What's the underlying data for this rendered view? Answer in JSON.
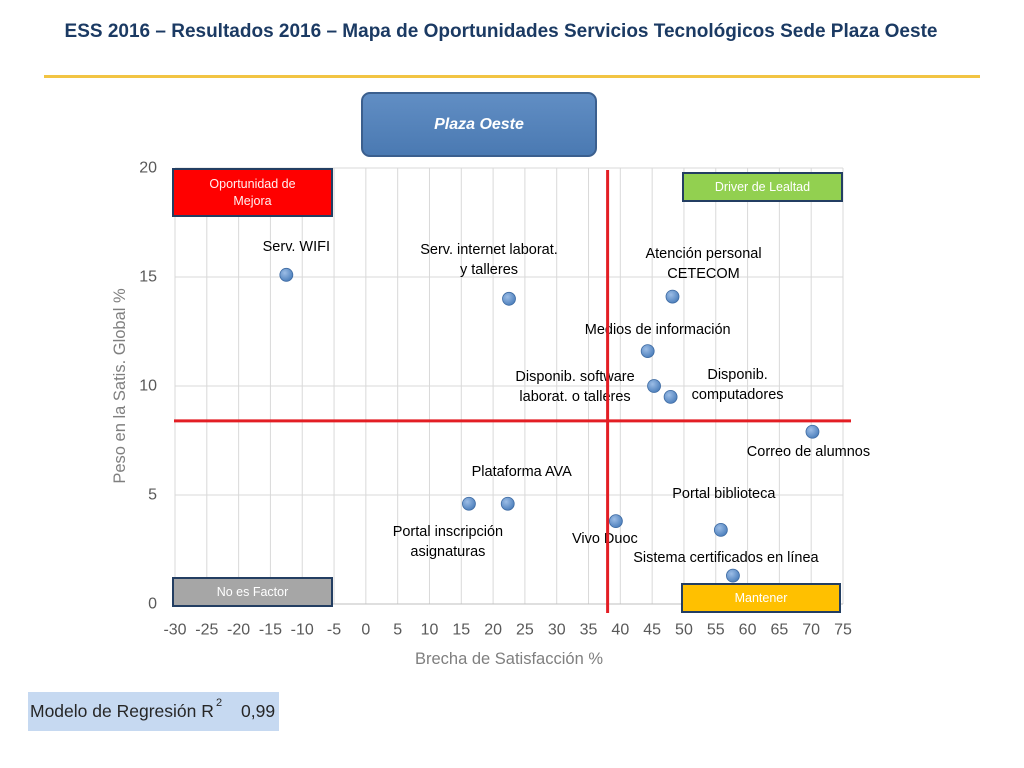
{
  "header": {
    "title": "ESS 2016 – Resultados 2016 – Mapa de Oportunidades Servicios Tecnológicos Sede Plaza Oeste",
    "title_color": "#1b3a63",
    "rule_color": "#f2c443"
  },
  "campus_box": {
    "label": "Plaza Oeste",
    "fill": "#4f81bd"
  },
  "quadrants": {
    "top_left": {
      "label": "Oportunidad de\nMejora",
      "fill": "#ff0000"
    },
    "top_right": {
      "label": "Driver de Lealtad",
      "fill": "#92d050"
    },
    "bottom_left": {
      "label": "No es Factor",
      "fill": "#a6a6a6"
    },
    "bottom_right": {
      "label": "Mantener",
      "fill": "#ffc000"
    }
  },
  "chart_data": {
    "type": "scatter",
    "xlabel": "Brecha de Satisfacción %",
    "ylabel": "Peso en la Satis. Global %",
    "xlim": [
      -30,
      75
    ],
    "ylim": [
      0,
      20
    ],
    "x_ticks": [
      -30,
      -25,
      -20,
      -15,
      -10,
      -5,
      0,
      5,
      10,
      15,
      20,
      25,
      30,
      35,
      40,
      45,
      50,
      55,
      60,
      65,
      70,
      75
    ],
    "y_ticks": [
      0,
      5,
      10,
      15,
      20
    ],
    "grid": true,
    "point_color": "#4f81bd",
    "reference_lines": {
      "x": 38,
      "y": 8.4,
      "color": "#e31e24"
    },
    "points": [
      {
        "label": "Serv. WIFI",
        "x": -12.5,
        "y": 15.1
      },
      {
        "label": "Serv. internet laborat.\ny talleres",
        "x": 22.5,
        "y": 14.0
      },
      {
        "label": "Atención personal\nCETECOM",
        "x": 48.2,
        "y": 14.1
      },
      {
        "label": "Medios de información",
        "x": 44.3,
        "y": 11.6
      },
      {
        "label": "Disponib. software\nlaborat. o talleres",
        "x": 45.3,
        "y": 10.0
      },
      {
        "label": "Disponib.\ncomputadores",
        "x": 47.9,
        "y": 9.5
      },
      {
        "label": "Correo de alumnos",
        "x": 70.2,
        "y": 7.9
      },
      {
        "label": "Plataforma AVA",
        "x": 22.3,
        "y": 4.6
      },
      {
        "label": "Portal inscripción\nasignaturas",
        "x": 16.2,
        "y": 4.6
      },
      {
        "label": "Vivo Duoc",
        "x": 39.3,
        "y": 3.8
      },
      {
        "label": "Portal biblioteca",
        "x": 55.8,
        "y": 3.4
      },
      {
        "label": "Sistema certificados en línea",
        "x": 57.7,
        "y": 1.3
      }
    ]
  },
  "footer": {
    "regression_label": "Modelo de Regresión R",
    "regression_superscript": "2",
    "regression_value": "0,99",
    "box_fill": "#c6d9f1"
  }
}
